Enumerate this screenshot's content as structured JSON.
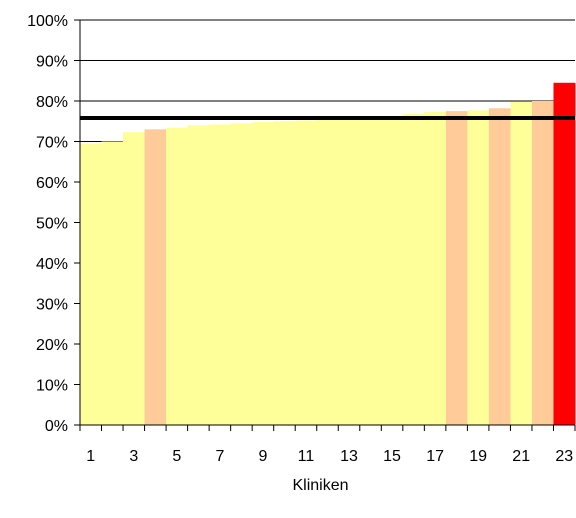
{
  "chart_data": {
    "type": "bar",
    "categories": [
      "1",
      "2",
      "3",
      "4",
      "5",
      "6",
      "7",
      "8",
      "9",
      "10",
      "11",
      "12",
      "13",
      "14",
      "15",
      "16",
      "17",
      "18",
      "19",
      "20",
      "21",
      "22",
      "23"
    ],
    "x_tick_labels": [
      "1",
      "3",
      "5",
      "7",
      "9",
      "11",
      "13",
      "15",
      "17",
      "19",
      "21",
      "23"
    ],
    "values": [
      69.5,
      70.0,
      72.3,
      73.0,
      73.4,
      74.0,
      74.2,
      74.5,
      74.8,
      75.0,
      75.2,
      75.5,
      75.6,
      75.8,
      76.2,
      76.8,
      77.3,
      77.5,
      77.7,
      78.2,
      79.8,
      80.0,
      84.5
    ],
    "bar_colors": [
      "#ffff99",
      "#ffff99",
      "#ffff99",
      "#ffcc99",
      "#ffff99",
      "#ffff99",
      "#ffff99",
      "#ffff99",
      "#ffff99",
      "#ffff99",
      "#ffff99",
      "#ffff99",
      "#ffff99",
      "#ffff99",
      "#ffff99",
      "#ffff99",
      "#ffff99",
      "#ffcc99",
      "#ffff99",
      "#ffcc99",
      "#ffff99",
      "#ffcc99",
      "#ff0000"
    ],
    "reference_line": 75.8,
    "reference_line_color": "#000000",
    "xlabel": "Kliniken",
    "ylabel": "",
    "ylim": [
      0,
      100
    ],
    "y_ticks": [
      0,
      10,
      20,
      30,
      40,
      50,
      60,
      70,
      80,
      90,
      100
    ],
    "y_tick_labels": [
      "0%",
      "10%",
      "20%",
      "30%",
      "40%",
      "50%",
      "60%",
      "70%",
      "80%",
      "90%",
      "100%"
    ],
    "grid": true,
    "title": ""
  }
}
